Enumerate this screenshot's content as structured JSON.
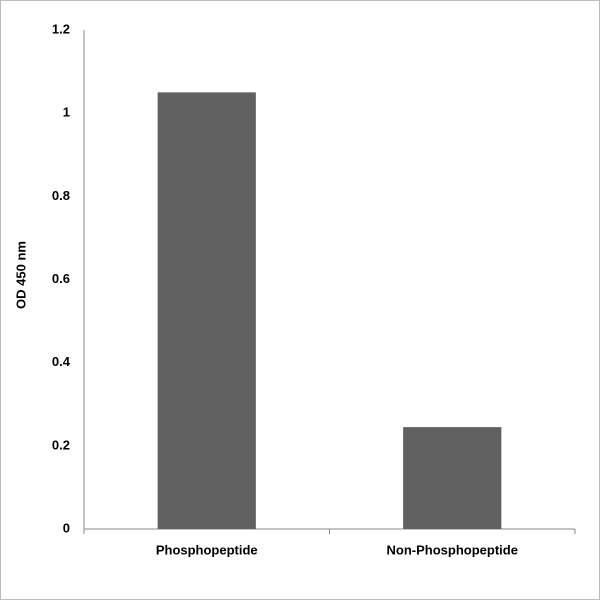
{
  "chart_data": {
    "type": "bar",
    "y_label": "OD 450 nm",
    "categories": [
      "Phosphopeptide",
      "Non-Phosphopeptide"
    ],
    "values": [
      1.05,
      0.245
    ],
    "color": "#606060",
    "ylim": [
      0,
      1.2
    ],
    "yticks": [
      0,
      0.2,
      0.4,
      0.6,
      0.8,
      1,
      1.2
    ],
    "grid": false
  }
}
